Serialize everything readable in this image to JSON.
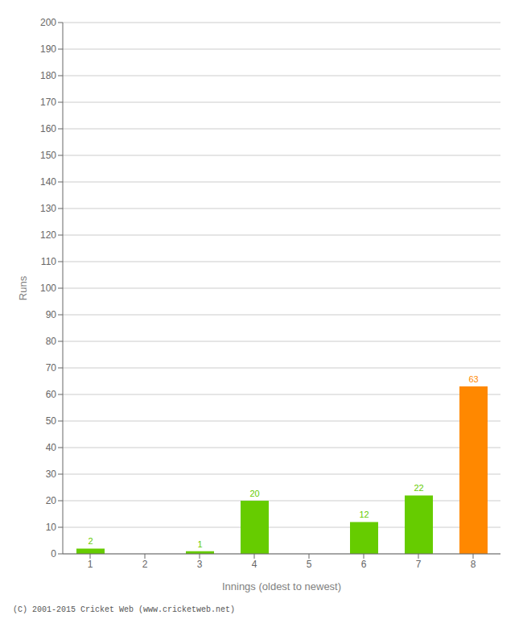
{
  "chart_data": {
    "type": "bar",
    "xlabel": "Innings (oldest to newest)",
    "ylabel": "Runs",
    "categories": [
      "1",
      "2",
      "3",
      "4",
      "5",
      "6",
      "7",
      "8"
    ],
    "values": [
      2,
      0,
      1,
      20,
      0,
      12,
      22,
      63
    ],
    "colors": [
      "#66cc00",
      "#66cc00",
      "#66cc00",
      "#66cc00",
      "#66cc00",
      "#66cc00",
      "#66cc00",
      "#ff8800"
    ],
    "ylim": [
      0,
      200
    ],
    "yticks": [
      0,
      10,
      20,
      30,
      40,
      50,
      60,
      70,
      80,
      90,
      100,
      110,
      120,
      130,
      140,
      150,
      160,
      170,
      180,
      190,
      200
    ],
    "grid": true,
    "data_labels": true,
    "annotations": [
      "(C) 2001-2015 Cricket Web (www.cricketweb.net)"
    ]
  }
}
